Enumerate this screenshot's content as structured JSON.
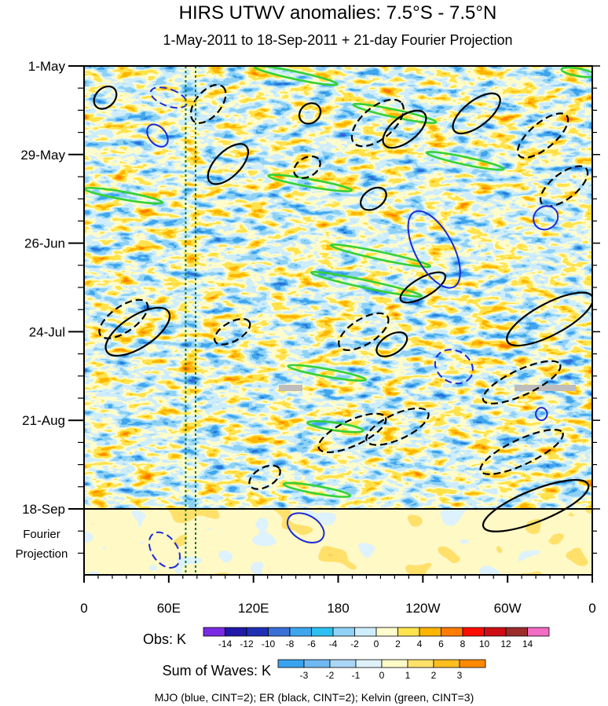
{
  "chart_data": {
    "type": "heatmap",
    "title": "HIRS UTWV anomalies: 7.5°S - 7.5°N",
    "subtitle": "1-May-2011 to 18-Sep-2011 + 21-day Fourier Projection",
    "x_tick_labels": [
      "0",
      "60E",
      "120E",
      "180",
      "120W",
      "60W",
      "0"
    ],
    "x_ticks_deg_east": [
      0,
      60,
      120,
      180,
      240,
      300,
      360
    ],
    "y_tick_labels": [
      "1-May",
      "29-May",
      "26-Jun",
      "24-Jul",
      "21-Aug",
      "18-Sep"
    ],
    "y_ticks_day": [
      0,
      28,
      56,
      84,
      112,
      140
    ],
    "observation_days": 140,
    "projection_days": 21,
    "projection_label": [
      "Fourier",
      "Projection"
    ],
    "obs_colorbar": {
      "title": "Obs: K",
      "labels": [
        "-14",
        "-12",
        "-10",
        "-8",
        "-6",
        "-4",
        "-2",
        "0",
        "2",
        "4",
        "6",
        "8",
        "10",
        "12",
        "14"
      ],
      "colors": [
        "#7b2ae3",
        "#2018a6",
        "#1e2fb4",
        "#3a6fd8",
        "#3fa6ee",
        "#2cc0f0",
        "#8fd2f6",
        "#cfeefd",
        "#fffccd",
        "#ffe34d",
        "#ffb400",
        "#ff7c00",
        "#ff0d00",
        "#cd0f15",
        "#9c2b2c",
        "#f26bc4"
      ]
    },
    "waves_colorbar": {
      "title": "Sum of Waves: K",
      "labels": [
        "-3",
        "-2",
        "-1",
        "0",
        "1",
        "2",
        "3"
      ],
      "colors": [
        "#3aa2ee",
        "#6fb8f2",
        "#a9d6f6",
        "#dff2fc",
        "#fffbc8",
        "#ffe16a",
        "#ffbe1e",
        "#ff8a00"
      ]
    },
    "caption": "MJO (blue, CINT=2); ER (black, CINT=2); Kelvin (green, CINT=3)",
    "reference_lines_deg_east": [
      72,
      79
    ],
    "contours": {
      "mjo": [
        {
          "lon": 60,
          "day": 10,
          "rx": 6,
          "ry": 6,
          "rot": -70,
          "dash": true
        },
        {
          "lon": 52,
          "day": 22,
          "rx": 6,
          "ry": 4,
          "rot": -40,
          "dash": false
        },
        {
          "lon": 248,
          "day": 58,
          "rx": 30,
          "ry": 6,
          "rot": 62,
          "dash": false
        },
        {
          "lon": 327,
          "day": 48,
          "rx": 8,
          "ry": 4,
          "rot": 55,
          "dash": false
        },
        {
          "lon": 262,
          "day": 95,
          "rx": 14,
          "ry": 5,
          "rot": 30,
          "dash": true
        },
        {
          "lon": 324,
          "day": 110,
          "rx": 4,
          "ry": 2,
          "rot": 0,
          "dash": false
        },
        {
          "lon": 157,
          "day": 146,
          "rx": 14,
          "ry": 4,
          "rot": 30,
          "dash": false
        },
        {
          "lon": 57,
          "day": 153,
          "rx": 14,
          "ry": 4,
          "rot": 55,
          "dash": true
        }
      ],
      "er": [
        {
          "lon": 15,
          "day": 10,
          "rx": 9,
          "ry": 3,
          "rot": -45,
          "dash": false
        },
        {
          "lon": 88,
          "day": 12,
          "rx": 16,
          "ry": 4,
          "rot": -50,
          "dash": true
        },
        {
          "lon": 102,
          "day": 31,
          "rx": 18,
          "ry": 4,
          "rot": -45,
          "dash": false
        },
        {
          "lon": 160,
          "day": 15,
          "rx": 8,
          "ry": 3,
          "rot": -40,
          "dash": false
        },
        {
          "lon": 208,
          "day": 18,
          "rx": 22,
          "ry": 5,
          "rot": -40,
          "dash": true
        },
        {
          "lon": 227,
          "day": 20,
          "rx": 18,
          "ry": 4,
          "rot": -38,
          "dash": false
        },
        {
          "lon": 278,
          "day": 15,
          "rx": 20,
          "ry": 4,
          "rot": -38,
          "dash": false
        },
        {
          "lon": 325,
          "day": 22,
          "rx": 22,
          "ry": 4,
          "rot": -40,
          "dash": true
        },
        {
          "lon": 340,
          "day": 38,
          "rx": 20,
          "ry": 4,
          "rot": -38,
          "dash": true
        },
        {
          "lon": 205,
          "day": 42,
          "rx": 10,
          "ry": 3,
          "rot": -35,
          "dash": false
        },
        {
          "lon": 158,
          "day": 32,
          "rx": 10,
          "ry": 3,
          "rot": -30,
          "dash": true
        },
        {
          "lon": 28,
          "day": 80,
          "rx": 20,
          "ry": 4,
          "rot": -35,
          "dash": true
        },
        {
          "lon": 38,
          "day": 84,
          "rx": 26,
          "ry": 5,
          "rot": -33,
          "dash": false
        },
        {
          "lon": 105,
          "day": 84,
          "rx": 14,
          "ry": 3,
          "rot": -30,
          "dash": true
        },
        {
          "lon": 240,
          "day": 70,
          "rx": 18,
          "ry": 3,
          "rot": -30,
          "dash": false
        },
        {
          "lon": 198,
          "day": 84,
          "rx": 20,
          "ry": 4,
          "rot": -32,
          "dash": true
        },
        {
          "lon": 218,
          "day": 88,
          "rx": 12,
          "ry": 3,
          "rot": -32,
          "dash": false
        },
        {
          "lon": 330,
          "day": 80,
          "rx": 34,
          "ry": 5,
          "rot": -28,
          "dash": false
        },
        {
          "lon": 310,
          "day": 100,
          "rx": 30,
          "ry": 4,
          "rot": -25,
          "dash": true
        },
        {
          "lon": 190,
          "day": 116,
          "rx": 26,
          "ry": 4,
          "rot": -25,
          "dash": true
        },
        {
          "lon": 222,
          "day": 114,
          "rx": 24,
          "ry": 4,
          "rot": -25,
          "dash": true
        },
        {
          "lon": 310,
          "day": 122,
          "rx": 32,
          "ry": 4,
          "rot": -25,
          "dash": true
        },
        {
          "lon": 128,
          "day": 130,
          "rx": 12,
          "ry": 3,
          "rot": -30,
          "dash": true
        },
        {
          "lon": 320,
          "day": 139,
          "rx": 40,
          "ry": 5,
          "rot": -22,
          "dash": false
        }
      ],
      "kelvin": [
        {
          "lon": 150,
          "day": 3,
          "rx": 30,
          "ry": 1.2,
          "rot": 12
        },
        {
          "lon": 220,
          "day": 15,
          "rx": 30,
          "ry": 1.2,
          "rot": 12
        },
        {
          "lon": 270,
          "day": 30,
          "rx": 28,
          "ry": 1.2,
          "rot": 12
        },
        {
          "lon": 28,
          "day": 41,
          "rx": 28,
          "ry": 1.2,
          "rot": 10
        },
        {
          "lon": 160,
          "day": 37,
          "rx": 30,
          "ry": 1.2,
          "rot": 10
        },
        {
          "lon": 210,
          "day": 60,
          "rx": 36,
          "ry": 1.2,
          "rot": 12
        },
        {
          "lon": 200,
          "day": 69,
          "rx": 40,
          "ry": 1.2,
          "rot": 12
        },
        {
          "lon": 172,
          "day": 97,
          "rx": 28,
          "ry": 1.2,
          "rot": 10
        },
        {
          "lon": 178,
          "day": 114,
          "rx": 20,
          "ry": 1.2,
          "rot": 8
        },
        {
          "lon": 165,
          "day": 134,
          "rx": 24,
          "ry": 1.2,
          "rot": 10
        },
        {
          "lon": 350,
          "day": 2,
          "rx": 12,
          "ry": 1.2,
          "rot": 10
        }
      ]
    }
  }
}
